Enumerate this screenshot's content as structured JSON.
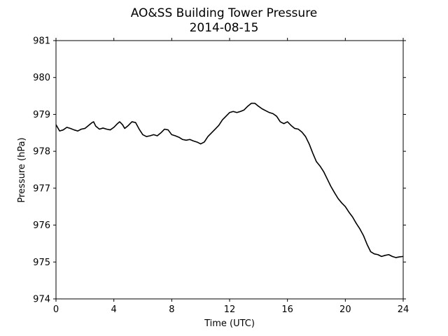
{
  "chart_data": {
    "type": "line",
    "title": "AO&SS Building Tower Pressure",
    "subtitle": "2014-08-15",
    "xlabel": "Time (UTC)",
    "ylabel": "Pressure (hPa)",
    "xlim": [
      0,
      24
    ],
    "ylim": [
      974,
      981
    ],
    "xticks": [
      0,
      4,
      8,
      12,
      16,
      20,
      24
    ],
    "xtick_labels": [
      "0",
      "4",
      "8",
      "12",
      "16",
      "20",
      "24"
    ],
    "yticks": [
      974,
      975,
      976,
      977,
      978,
      979,
      980,
      981
    ],
    "ytick_labels": [
      "974",
      "975",
      "976",
      "977",
      "978",
      "979",
      "980",
      "981"
    ],
    "grid": false,
    "line_color": "#000000",
    "series": [
      {
        "x": [
          0,
          0.25,
          0.5,
          0.75,
          1,
          1.25,
          1.5,
          1.75,
          2,
          2.25,
          2.5,
          2.6,
          2.75,
          3,
          3.25,
          3.5,
          3.75,
          4,
          4.25,
          4.4,
          4.6,
          4.75,
          5,
          5.25,
          5.5,
          5.75,
          6,
          6.25,
          6.5,
          6.75,
          7,
          7.25,
          7.5,
          7.75,
          8,
          8.25,
          8.5,
          8.75,
          9,
          9.25,
          9.5,
          9.75,
          10,
          10.25,
          10.5,
          10.75,
          11,
          11.25,
          11.5,
          11.75,
          12,
          12.25,
          12.5,
          12.75,
          13,
          13.25,
          13.5,
          13.75,
          14,
          14.25,
          14.5,
          14.75,
          15,
          15.25,
          15.5,
          15.75,
          16,
          16.25,
          16.5,
          16.75,
          17,
          17.25,
          17.5,
          17.75,
          18,
          18.25,
          18.5,
          18.75,
          19,
          19.25,
          19.5,
          19.75,
          20,
          20.25,
          20.5,
          20.75,
          21,
          21.25,
          21.5,
          21.75,
          22,
          22.25,
          22.5,
          22.75,
          23,
          23.25,
          23.5,
          23.75,
          24
        ],
        "y": [
          978.72,
          978.55,
          978.58,
          978.65,
          978.62,
          978.58,
          978.55,
          978.6,
          978.62,
          978.7,
          978.78,
          978.8,
          978.68,
          978.6,
          978.63,
          978.6,
          978.58,
          978.65,
          978.75,
          978.8,
          978.72,
          978.62,
          978.7,
          978.8,
          978.78,
          978.6,
          978.45,
          978.4,
          978.42,
          978.45,
          978.42,
          978.5,
          978.6,
          978.58,
          978.45,
          978.42,
          978.38,
          978.32,
          978.3,
          978.32,
          978.28,
          978.25,
          978.2,
          978.25,
          978.4,
          978.5,
          978.6,
          978.7,
          978.85,
          978.95,
          979.05,
          979.08,
          979.05,
          979.08,
          979.12,
          979.22,
          979.3,
          979.3,
          979.22,
          979.15,
          979.1,
          979.05,
          979.02,
          978.95,
          978.8,
          978.75,
          978.8,
          978.7,
          978.62,
          978.6,
          978.52,
          978.4,
          978.2,
          977.95,
          977.72,
          977.6,
          977.45,
          977.25,
          977.05,
          976.88,
          976.72,
          976.6,
          976.5,
          976.35,
          976.22,
          976.05,
          975.9,
          975.72,
          975.48,
          975.28,
          975.22,
          975.2,
          975.15,
          975.18,
          975.2,
          975.15,
          975.12,
          975.14,
          975.15
        ]
      }
    ]
  }
}
